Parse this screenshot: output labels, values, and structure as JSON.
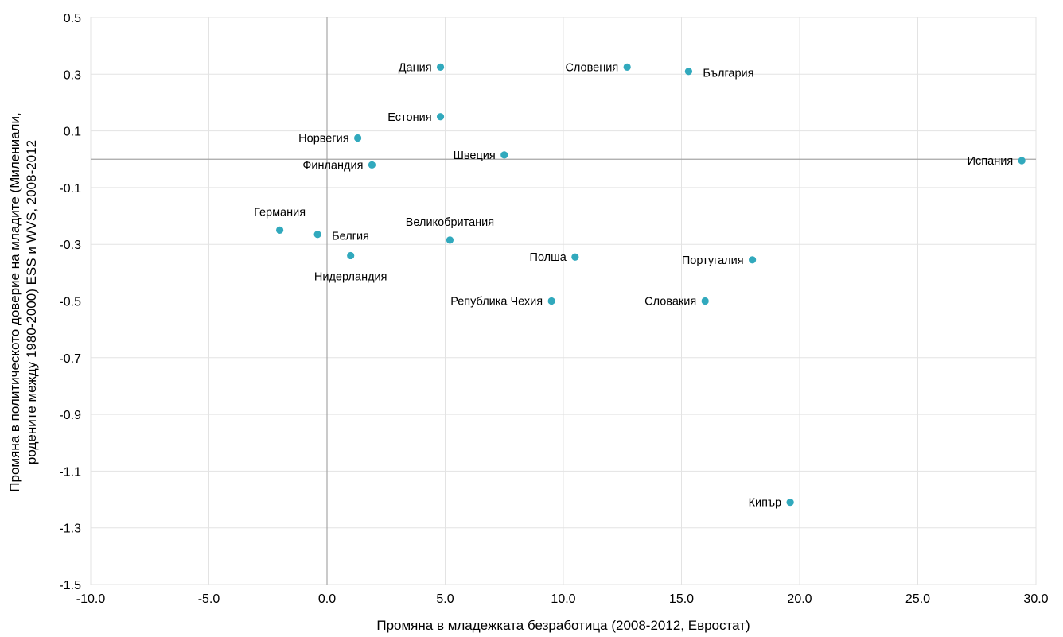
{
  "chart_data": {
    "type": "scatter",
    "title": "",
    "xlabel": "Промяна в младежката безработица  (2008-2012, Евростат)",
    "ylabel_lines": [
      "Промяна в политическото доверие на младите (Милениали,",
      "родените между 1980-2000) ESS и WVS, 2008-2012"
    ],
    "xlim": [
      -10,
      30
    ],
    "ylim": [
      -1.5,
      0.5
    ],
    "x_ticks": [
      "-10.0",
      "-5.0",
      "0.0",
      "5.0",
      "10.0",
      "15.0",
      "20.0",
      "25.0",
      "30.0"
    ],
    "y_ticks": [
      "0.5",
      "0.3",
      "0.1",
      "-0.1",
      "-0.3",
      "-0.5",
      "-0.7",
      "-0.9",
      "-1.1",
      "-1.3",
      "-1.5"
    ],
    "grid": true,
    "marker_color": "#31a9bd",
    "zero_line_color": "#a6a6a6",
    "points": [
      {
        "label": "Дания",
        "x": 4.8,
        "y": 0.325,
        "label_pos": "left"
      },
      {
        "label": "Словения",
        "x": 12.7,
        "y": 0.325,
        "label_pos": "left"
      },
      {
        "label": "България",
        "x": 15.3,
        "y": 0.31,
        "label_pos": "right"
      },
      {
        "label": "Естония",
        "x": 4.8,
        "y": 0.15,
        "label_pos": "left"
      },
      {
        "label": "Норвегия",
        "x": 1.3,
        "y": 0.075,
        "label_pos": "left"
      },
      {
        "label": "Швеция",
        "x": 7.5,
        "y": 0.015,
        "label_pos": "left"
      },
      {
        "label": "Финландия",
        "x": 1.9,
        "y": -0.02,
        "label_pos": "left"
      },
      {
        "label": "Испания",
        "x": 29.4,
        "y": -0.005,
        "label_pos": "left"
      },
      {
        "label": "Германия",
        "x": -2.0,
        "y": -0.25,
        "label_pos": "above"
      },
      {
        "label": "Белгия",
        "x": -0.4,
        "y": -0.265,
        "label_pos": "right"
      },
      {
        "label": "Великобритания",
        "x": 5.2,
        "y": -0.285,
        "label_pos": "above"
      },
      {
        "label": "Нидерландия",
        "x": 1.0,
        "y": -0.34,
        "label_pos": "below"
      },
      {
        "label": "Полша",
        "x": 10.5,
        "y": -0.345,
        "label_pos": "left"
      },
      {
        "label": "Португалия",
        "x": 18.0,
        "y": -0.355,
        "label_pos": "left"
      },
      {
        "label": "Република Чехия",
        "x": 9.5,
        "y": -0.5,
        "label_pos": "left"
      },
      {
        "label": "Словакия",
        "x": 16.0,
        "y": -0.5,
        "label_pos": "left"
      },
      {
        "label": "Кипър",
        "x": 19.6,
        "y": -1.21,
        "label_pos": "left"
      }
    ]
  }
}
